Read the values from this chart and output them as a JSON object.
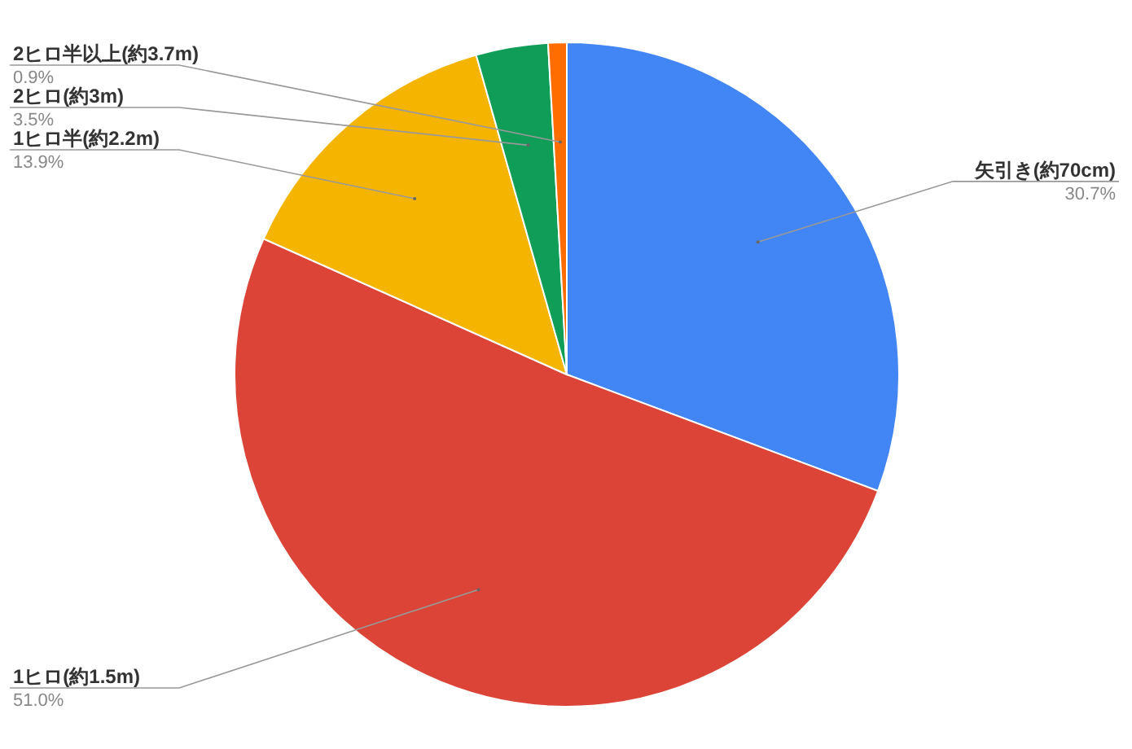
{
  "chart_data": {
    "type": "pie",
    "categories": [
      "矢引き(約70cm)",
      "1ヒロ(約1.5m)",
      "1ヒロ半(約2.2m)",
      "2ヒロ(約3m)",
      "2ヒロ半以上(約3.7m)"
    ],
    "values": [
      30.7,
      51.0,
      13.9,
      3.5,
      0.9
    ],
    "colors": [
      "#4285f4",
      "#db4437",
      "#f4b400",
      "#0f9d58",
      "#ff6d01"
    ],
    "value_labels": [
      "30.7%",
      "51.0%",
      "13.9%",
      "3.5%",
      "0.9%"
    ]
  }
}
